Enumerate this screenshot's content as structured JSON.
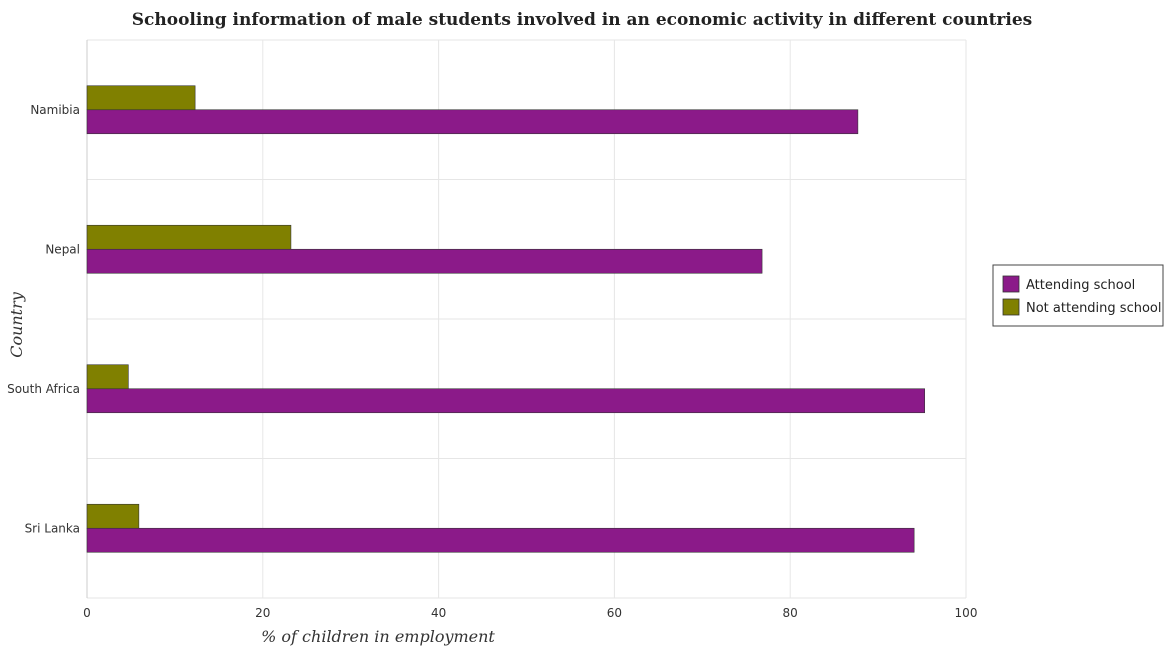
{
  "chart_data": {
    "type": "bar",
    "orientation": "horizontal",
    "title": "Schooling information of male students involved in an economic activity in different countries",
    "xlabel": "% of children in employment",
    "ylabel": "Country",
    "xlim": [
      0,
      100
    ],
    "xticks": [
      "0",
      "20",
      "40",
      "60",
      "80",
      "100"
    ],
    "xtick_values": [
      0,
      20,
      40,
      60,
      80,
      100
    ],
    "grid": true,
    "legend_position": "right",
    "categories": [
      "Namibia",
      "Nepal",
      "South Africa",
      "Sri Lanka"
    ],
    "series": [
      {
        "name": "Attending school",
        "color": "#8b1a89",
        "values": [
          87.7,
          76.8,
          95.3,
          94.1
        ]
      },
      {
        "name": "Not attending school",
        "color": "#808000",
        "values": [
          12.3,
          23.2,
          4.7,
          5.9
        ]
      }
    ]
  }
}
